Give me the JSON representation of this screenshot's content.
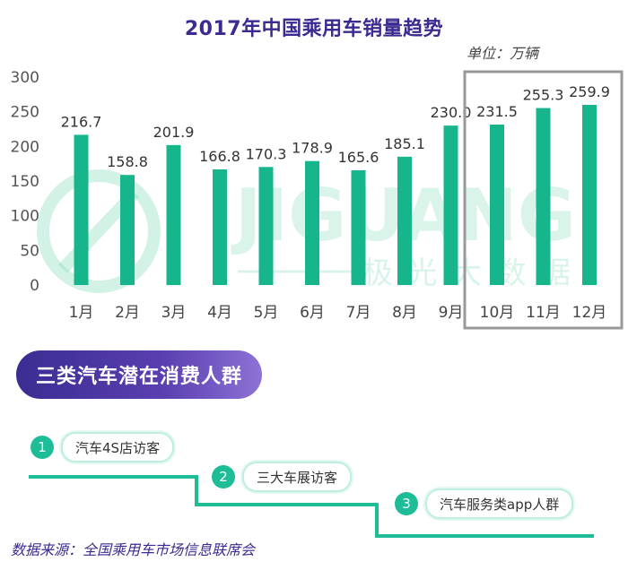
{
  "title": "2017年中国乘用车销量趋势",
  "unit_label": "单位：万辆",
  "chart_data": {
    "type": "bar",
    "title": "2017年中国乘用车销量趋势",
    "categories": [
      "1月",
      "2月",
      "3月",
      "4月",
      "5月",
      "6月",
      "7月",
      "8月",
      "9月",
      "10月",
      "11月",
      "12月"
    ],
    "values": [
      216.7,
      158.8,
      201.9,
      166.8,
      170.3,
      178.9,
      165.6,
      185.1,
      230.0,
      231.5,
      255.3,
      259.9
    ],
    "value_labels": [
      "216.7",
      "158.8",
      "201.9",
      "166.8",
      "170.3",
      "178.9",
      "165.6",
      "185.1",
      "230.0",
      "231.5",
      "255.3",
      "259.9"
    ],
    "yticks": [
      "0",
      "50",
      "100",
      "150",
      "200",
      "250",
      "300"
    ],
    "ylim": [
      0,
      300
    ],
    "bar_color": "#16b58c",
    "highlighted_categories": [
      "10月",
      "11月",
      "12月"
    ],
    "highlight_box_color": "#999999",
    "grid": false,
    "xlabel": "",
    "ylabel": ""
  },
  "watermark": {
    "text_en": "JIGUANG",
    "text_cn": "极光大数据",
    "color": "#7fd9b5"
  },
  "section": {
    "title": "三类汽车潜在消费人群",
    "steps": [
      {
        "num": "1",
        "label": "汽车4S店访客"
      },
      {
        "num": "2",
        "label": "三大车展访客"
      },
      {
        "num": "3",
        "label": "汽车服务类app人群"
      }
    ]
  },
  "source": "数据来源：全国乘用车市场信息联席会",
  "colors": {
    "accent": "#1ebc97",
    "title": "#3b2a8f",
    "banner_start": "#3a2d92",
    "banner_end": "#8d73d6"
  }
}
